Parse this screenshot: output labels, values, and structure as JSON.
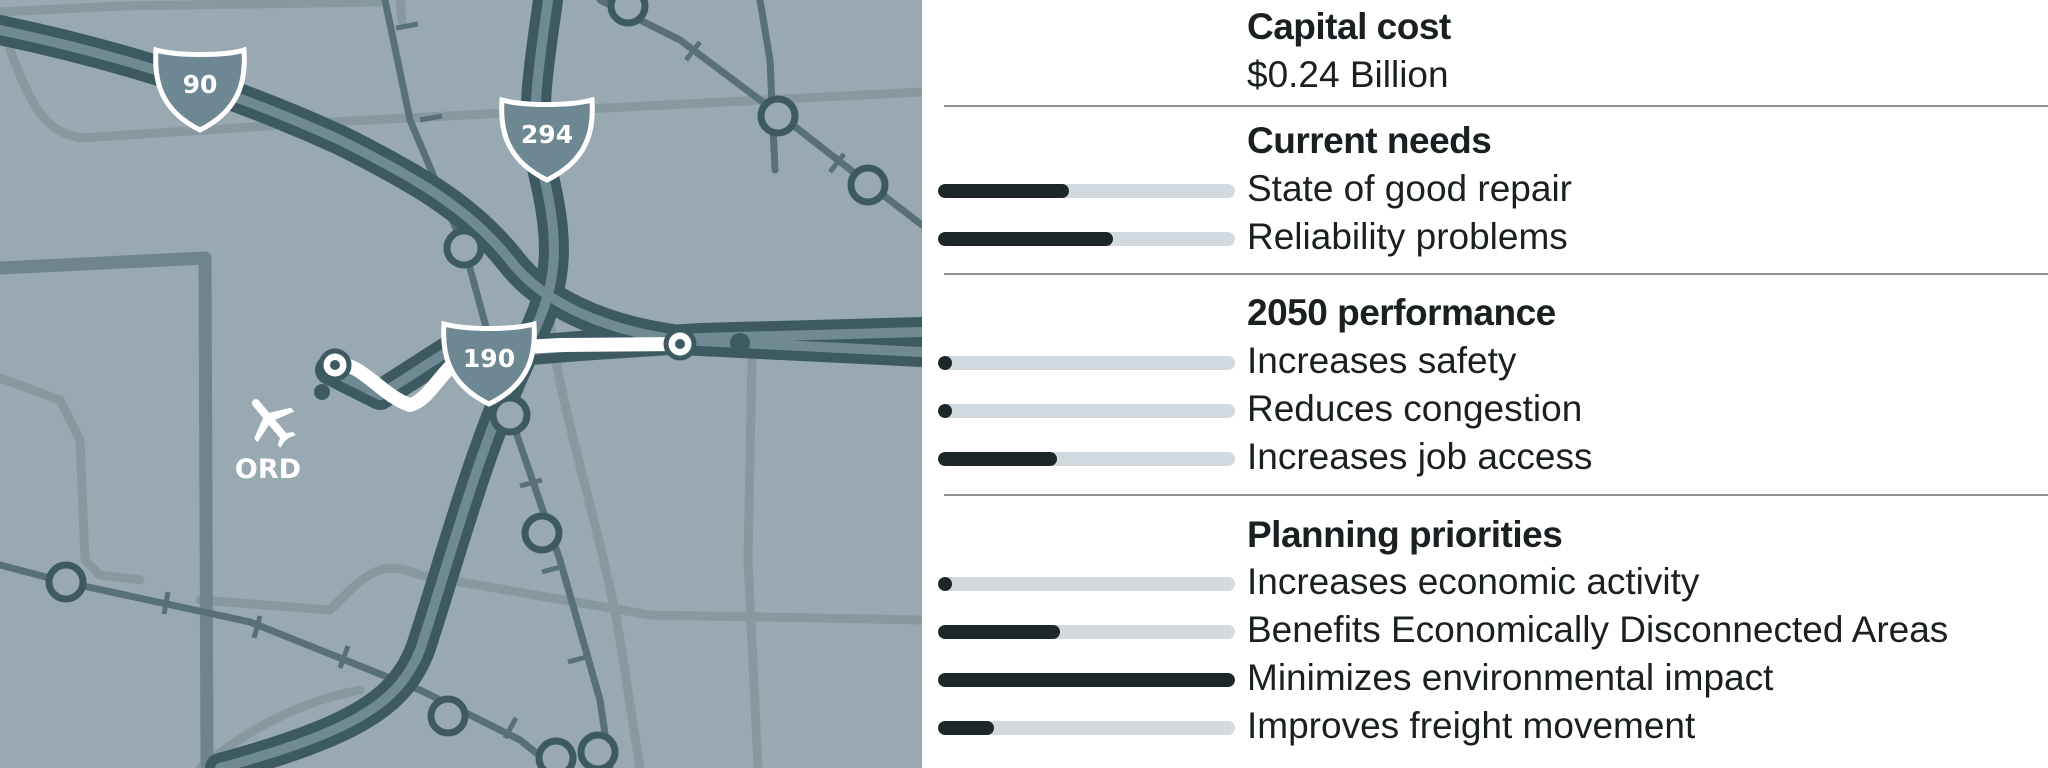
{
  "map": {
    "shields": [
      {
        "number": "90"
      },
      {
        "number": "294"
      },
      {
        "number": "190"
      }
    ],
    "airport": {
      "code": "ORD",
      "icon": "airplane-icon"
    },
    "colors": {
      "background": "#98a9b1",
      "minor_road": "#87999f",
      "rail": "#587079",
      "highway": "#3d5a63",
      "highway_fill": "#6f8a93",
      "project_route": "#ffffff"
    }
  },
  "scorecard": {
    "capital_cost": {
      "title": "Capital cost",
      "value": "$0.24 Billion"
    },
    "sections": [
      {
        "title": "Current needs",
        "metrics": [
          {
            "label": "State of good repair",
            "score": 0.44
          },
          {
            "label": "Reliability problems",
            "score": 0.59
          }
        ]
      },
      {
        "title": "2050 performance",
        "metrics": [
          {
            "label": "Increases safety",
            "score": 0.03
          },
          {
            "label": "Reduces congestion",
            "score": 0.03
          },
          {
            "label": "Increases job access",
            "score": 0.4
          }
        ]
      },
      {
        "title": "Planning priorities",
        "metrics": [
          {
            "label": "Increases economic activity",
            "score": 0.03
          },
          {
            "label": "Benefits Economically Disconnected Areas",
            "score": 0.41
          },
          {
            "label": "Minimizes environmental impact",
            "score": 1.0
          },
          {
            "label": "Improves freight movement",
            "score": 0.19
          }
        ]
      }
    ],
    "colors": {
      "bar_fill": "#1d2628",
      "bar_track": "#d2dadf",
      "divider": "#8d9396"
    }
  }
}
